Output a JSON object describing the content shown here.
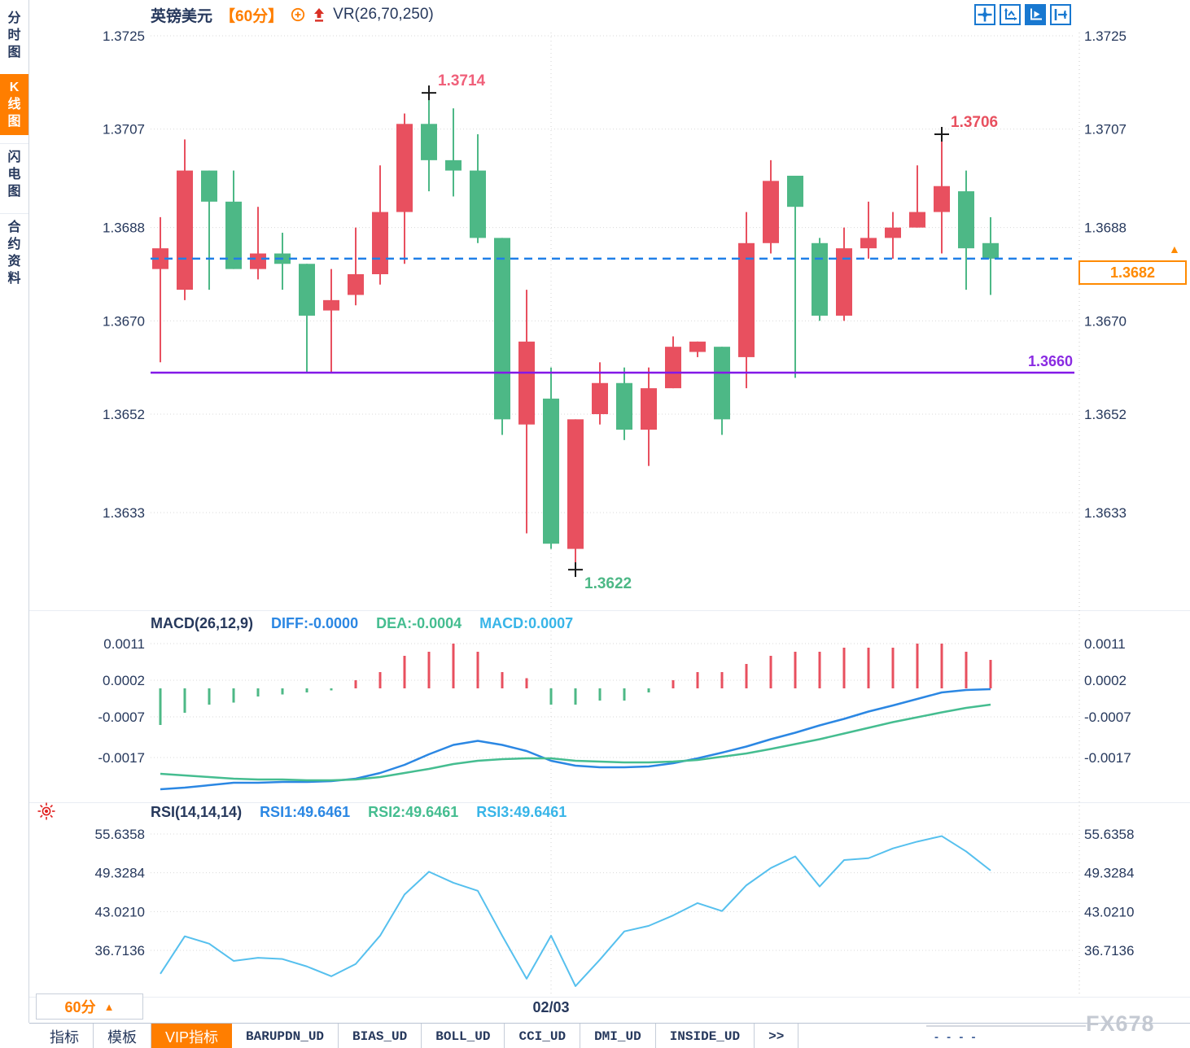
{
  "header": {
    "symbol": "英镑美元",
    "interval": "【60分】",
    "indicator": "VR(26,70,250)"
  },
  "sidebar": {
    "items": [
      {
        "label": "分时图",
        "active": false
      },
      {
        "label": "K线图",
        "active": true
      },
      {
        "label": "闪电图",
        "active": false
      },
      {
        "label": "合约资料",
        "active": false
      }
    ]
  },
  "top_icons": [
    {
      "name": "pan-crosshair-icon",
      "active": false
    },
    {
      "name": "axis-zoom-icon",
      "active": false
    },
    {
      "name": "axis-play-active-icon",
      "active": true
    },
    {
      "name": "collapse-panel-icon",
      "active": false
    }
  ],
  "chart_data": {
    "type": "candlestick",
    "title": "英镑美元 60分 K线图",
    "up_means": "red",
    "down_means": "green",
    "price_axis_ticks": [
      1.3725,
      1.3707,
      1.3688,
      1.367,
      1.3652,
      1.3633
    ],
    "price_axis_range": [
      1.3633,
      1.3725
    ],
    "candles_ohlc": [
      [
        1.368,
        1.369,
        1.3662,
        1.3684
      ],
      [
        1.3676,
        1.3705,
        1.3674,
        1.3699
      ],
      [
        1.3699,
        1.3699,
        1.3676,
        1.3693
      ],
      [
        1.3693,
        1.3699,
        1.368,
        1.368
      ],
      [
        1.368,
        1.3692,
        1.3678,
        1.3683
      ],
      [
        1.3683,
        1.3687,
        1.3676,
        1.3681
      ],
      [
        1.3681,
        1.3681,
        1.366,
        1.3671
      ],
      [
        1.3672,
        1.368,
        1.366,
        1.3674
      ],
      [
        1.3675,
        1.3688,
        1.3673,
        1.3679
      ],
      [
        1.3679,
        1.37,
        1.3677,
        1.3691
      ],
      [
        1.3691,
        1.371,
        1.3681,
        1.3708
      ],
      [
        1.3708,
        1.3714,
        1.3695,
        1.3701
      ],
      [
        1.3701,
        1.3711,
        1.3694,
        1.3699
      ],
      [
        1.3699,
        1.3706,
        1.3685,
        1.3686
      ],
      [
        1.3686,
        1.3686,
        1.3648,
        1.3651
      ],
      [
        1.365,
        1.3676,
        1.3629,
        1.3666
      ],
      [
        1.3655,
        1.3661,
        1.3626,
        1.3627
      ],
      [
        1.3626,
        1.3651,
        1.3622,
        1.3651
      ],
      [
        1.3652,
        1.3662,
        1.365,
        1.3658
      ],
      [
        1.3658,
        1.3661,
        1.3647,
        1.3649
      ],
      [
        1.3649,
        1.3661,
        1.3642,
        1.3657
      ],
      [
        1.3657,
        1.3667,
        1.3657,
        1.3665
      ],
      [
        1.3664,
        1.3666,
        1.3663,
        1.3666
      ],
      [
        1.3665,
        1.3665,
        1.3648,
        1.3651
      ],
      [
        1.3663,
        1.3691,
        1.3657,
        1.3685
      ],
      [
        1.3685,
        1.3701,
        1.3683,
        1.3697
      ],
      [
        1.3698,
        1.3698,
        1.3659,
        1.3692
      ],
      [
        1.3685,
        1.3686,
        1.367,
        1.3671
      ],
      [
        1.3671,
        1.3688,
        1.367,
        1.3684
      ],
      [
        1.3684,
        1.3693,
        1.3682,
        1.3686
      ],
      [
        1.3686,
        1.3691,
        1.3682,
        1.3688
      ],
      [
        1.3688,
        1.37,
        1.3688,
        1.3691
      ],
      [
        1.3691,
        1.3706,
        1.3683,
        1.3696
      ],
      [
        1.3695,
        1.3699,
        1.3676,
        1.3684
      ],
      [
        1.3685,
        1.369,
        1.3675,
        1.3682
      ]
    ],
    "current_price": {
      "value": 1.3682,
      "label": "1.3682"
    },
    "support_line": {
      "value": 1.366,
      "label": "1.3660"
    },
    "annotations": [
      {
        "type": "high",
        "candle": 12,
        "price": 1.3714,
        "label": "1.3714",
        "color": "#f0607a"
      },
      {
        "type": "high",
        "candle": 33,
        "price": 1.3706,
        "label": "1.3706",
        "color": "#e8505f"
      },
      {
        "type": "low",
        "candle": 18,
        "price": 1.3622,
        "label": "1.3622",
        "color": "#4db886"
      }
    ],
    "date_label": "02/03",
    "macd": {
      "title": "MACD(26,12,9)",
      "diff_label": "DIFF:-0.0000",
      "dea_label": "DEA:-0.0004",
      "macd_label": "MACD:0.0007",
      "axis_ticks": [
        0.0011,
        0.0002,
        -0.0007,
        -0.0017
      ],
      "axis_range": [
        -0.0017,
        0.0011
      ],
      "hist": [
        -0.0009,
        -0.0006,
        -0.0004,
        -0.00035,
        -0.0002,
        -0.00015,
        -0.0001,
        -5e-05,
        0.0002,
        0.0004,
        0.0008,
        0.0009,
        0.0011,
        0.0009,
        0.0004,
        0.00025,
        -0.0004,
        -0.0004,
        -0.0003,
        -0.0003,
        -0.0001,
        0.0002,
        0.0004,
        0.0004,
        0.0006,
        0.0008,
        0.0009,
        0.0009,
        0.001,
        0.001,
        0.001,
        0.0011,
        0.0011,
        0.0009,
        0.0007
      ],
      "diff": [
        -0.00248,
        -0.00244,
        -0.00238,
        -0.00232,
        -0.00232,
        -0.0023,
        -0.0023,
        -0.00228,
        -0.00222,
        -0.00208,
        -0.00188,
        -0.00162,
        -0.00139,
        -0.00129,
        -0.00139,
        -0.00154,
        -0.00178,
        -0.0019,
        -0.00194,
        -0.00194,
        -0.00192,
        -0.00184,
        -0.00172,
        -0.00158,
        -0.00143,
        -0.00125,
        -0.00109,
        -0.00091,
        -0.00075,
        -0.00057,
        -0.00042,
        -0.00026,
        -0.0001,
        -4e-05,
        -2e-05
      ],
      "dea": [
        -0.0021,
        -0.00214,
        -0.00218,
        -0.00222,
        -0.00224,
        -0.00224,
        -0.00226,
        -0.00226,
        -0.00224,
        -0.00218,
        -0.00208,
        -0.00198,
        -0.00186,
        -0.00178,
        -0.00174,
        -0.00172,
        -0.00172,
        -0.00178,
        -0.0018,
        -0.00182,
        -0.00182,
        -0.0018,
        -0.00176,
        -0.00168,
        -0.0016,
        -0.00149,
        -0.00137,
        -0.00125,
        -0.00111,
        -0.00097,
        -0.00083,
        -0.00071,
        -0.00059,
        -0.00048,
        -0.0004
      ]
    },
    "rsi": {
      "title": "RSI(14,14,14)",
      "rsi1_label": "RSI1:49.6461",
      "rsi2_label": "RSI2:49.6461",
      "rsi3_label": "RSI3:49.6461",
      "axis_ticks": [
        55.6358,
        49.3284,
        43.021,
        36.7136
      ],
      "axis_range": [
        30,
        58
      ],
      "values": [
        32.9,
        39.0,
        37.8,
        35.0,
        35.5,
        35.3,
        34.1,
        32.5,
        34.5,
        39.1,
        45.8,
        49.5,
        47.7,
        46.4,
        39.1,
        32.1,
        39.1,
        30.9,
        35.2,
        39.8,
        40.7,
        42.4,
        44.4,
        43.1,
        47.3,
        50.1,
        52.0,
        47.1,
        51.4,
        51.7,
        53.3,
        54.4,
        55.3,
        52.8,
        49.7
      ]
    }
  },
  "colors": {
    "up": "#e8505f",
    "down": "#4db886",
    "diff_line": "#2b87e3",
    "dea_line": "#45bd90",
    "macd_value_text": "#38b5e8",
    "rsi_line": "#56c0ee",
    "current_price_line": "#1f7fe8",
    "price_tag": "#ff8a00",
    "support_line": "#8318e8",
    "accent_orange": "#ff7e00",
    "dark_text": "#26385c",
    "grid": "#d9d9d9",
    "icon_blue": "#1878d0",
    "marker_cross": "#1b1b1b"
  },
  "bottom": {
    "period_label": "60分",
    "period_arrow": "▲",
    "date_label": "02/03",
    "dashes": "- - - -",
    "watermark": "FX678",
    "tabs": [
      {
        "label": "指标",
        "active": false,
        "mono": false
      },
      {
        "label": "模板",
        "active": false,
        "mono": false
      },
      {
        "label": "VIP指标",
        "active": true,
        "mono": false
      },
      {
        "label": "BARUPDN_UD",
        "active": false,
        "mono": true
      },
      {
        "label": "BIAS_UD",
        "active": false,
        "mono": true
      },
      {
        "label": "BOLL_UD",
        "active": false,
        "mono": true
      },
      {
        "label": "CCI_UD",
        "active": false,
        "mono": true
      },
      {
        "label": "DMI_UD",
        "active": false,
        "mono": true
      },
      {
        "label": "INSIDE_UD",
        "active": false,
        "mono": true
      },
      {
        "label": ">>",
        "active": false,
        "mono": true
      }
    ]
  }
}
